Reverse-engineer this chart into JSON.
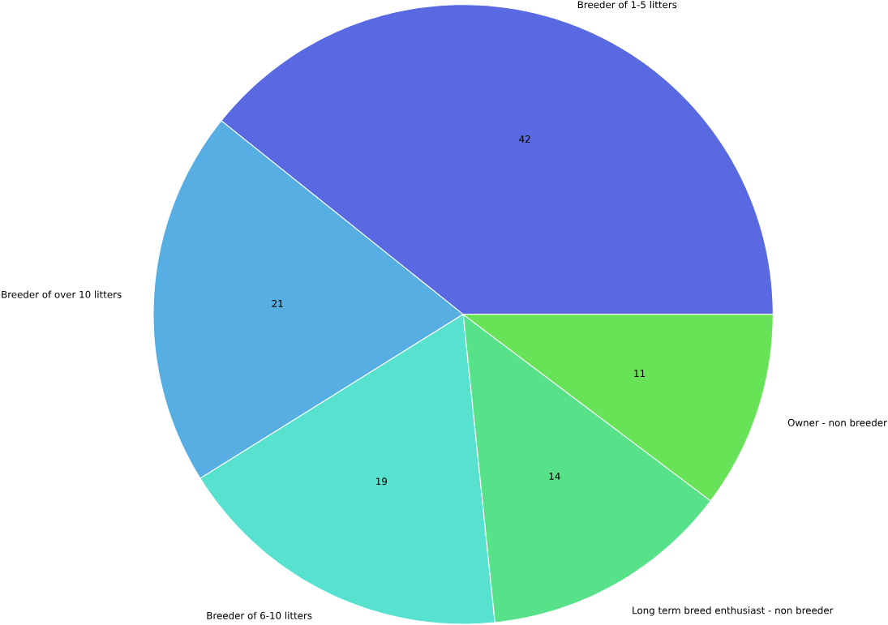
{
  "chart_data": {
    "type": "pie",
    "categories": [
      "Breeder of 1-5 litters",
      "Breeder of over 10 litters",
      "Breeder of 6-10 litters",
      "Long term breed enthusiast - non breeder",
      "Owner - non breeder"
    ],
    "values": [
      42,
      21,
      19,
      14,
      11
    ],
    "colors": [
      "#5869e2",
      "#57aee2",
      "#57e2cf",
      "#57e28a",
      "#68e257"
    ],
    "data_labels": true
  }
}
